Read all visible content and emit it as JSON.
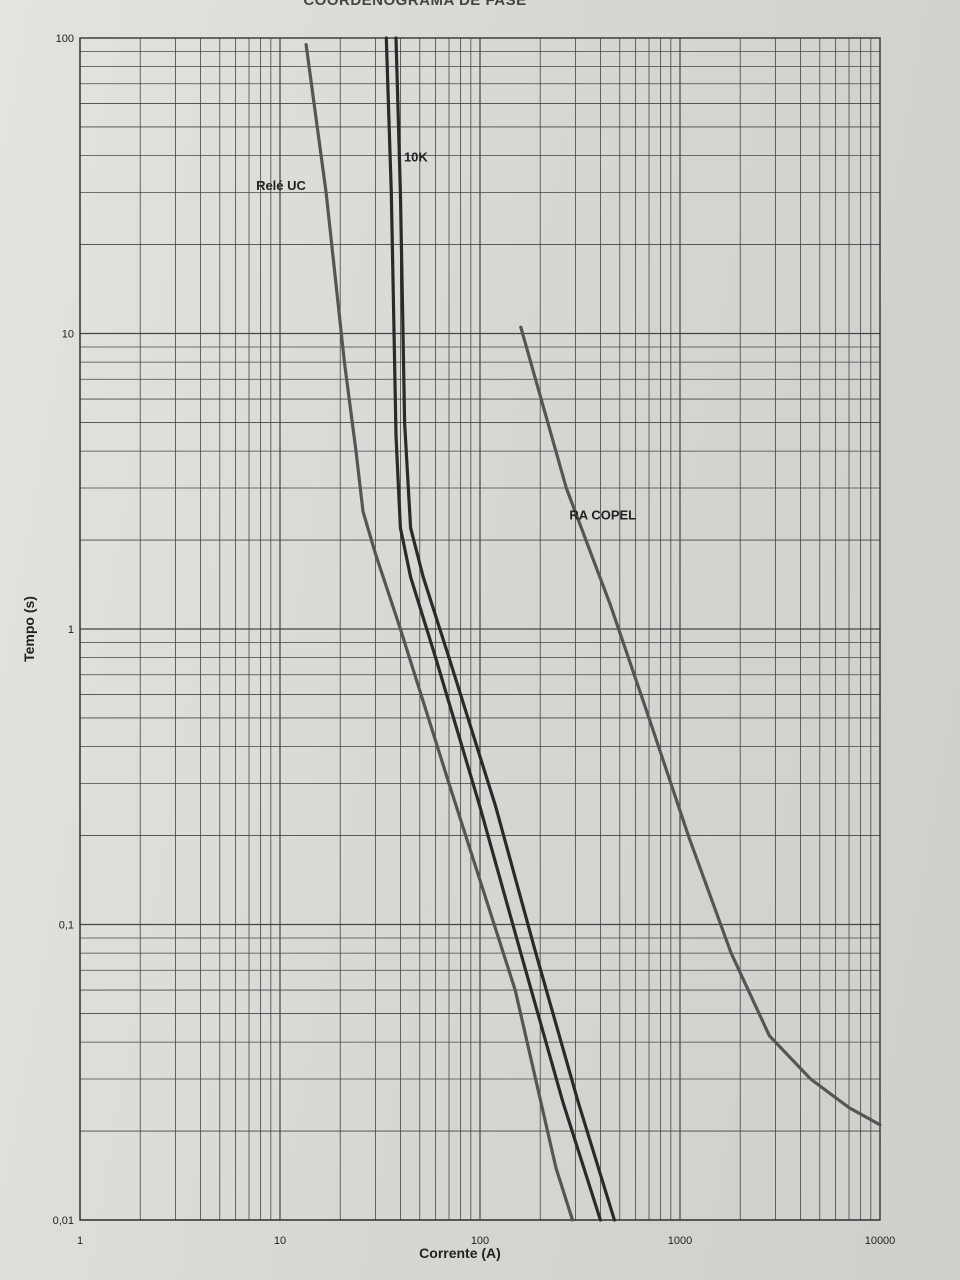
{
  "page_title": "COORDENOGRAMA DE FASE",
  "chart_data": {
    "type": "line",
    "title": "COORDENOGRAMA DE FASE",
    "xlabel": "Corrente (A)",
    "ylabel": "Tempo (s)",
    "x_scale": "log",
    "y_scale": "log",
    "xlim": [
      1,
      10000
    ],
    "ylim": [
      0.01,
      100
    ],
    "grid": true,
    "x_ticks": [
      "1",
      "10",
      "100",
      "1000",
      "10000"
    ],
    "y_ticks": [
      "0,01",
      "0,1",
      "1",
      "10",
      "100"
    ],
    "series": [
      {
        "name": "Relé UC",
        "color": "#555555",
        "points": [
          [
            13.5,
            95
          ],
          [
            17,
            30
          ],
          [
            21,
            8
          ],
          [
            24,
            4
          ],
          [
            26,
            2.5
          ],
          [
            30,
            1.8
          ],
          [
            40,
            1.0
          ],
          [
            70,
            0.3
          ],
          [
            150,
            0.06
          ],
          [
            240,
            0.015
          ],
          [
            290,
            0.01
          ]
        ]
      },
      {
        "name": "10K",
        "color": "#2a2a2a",
        "points": [
          [
            34,
            100
          ],
          [
            36,
            30
          ],
          [
            37,
            12
          ],
          [
            38,
            4.5
          ],
          [
            40,
            2.2
          ],
          [
            45,
            1.5
          ],
          [
            60,
            0.8
          ],
          [
            100,
            0.25
          ],
          [
            160,
            0.08
          ],
          [
            260,
            0.025
          ],
          [
            400,
            0.01
          ]
        ]
      },
      {
        "name": "",
        "color": "#2a2a2a",
        "points": [
          [
            38,
            100
          ],
          [
            40,
            30
          ],
          [
            41,
            12
          ],
          [
            42,
            5
          ],
          [
            45,
            2.2
          ],
          [
            52,
            1.5
          ],
          [
            70,
            0.8
          ],
          [
            120,
            0.25
          ],
          [
            190,
            0.08
          ],
          [
            310,
            0.025
          ],
          [
            470,
            0.01
          ]
        ]
      },
      {
        "name": "RA COPEL",
        "color": "#555555",
        "points": [
          [
            160,
            10.5
          ],
          [
            270,
            3.0
          ],
          [
            450,
            1.2
          ],
          [
            700,
            0.5
          ],
          [
            1100,
            0.2
          ],
          [
            1800,
            0.08
          ],
          [
            2800,
            0.042
          ],
          [
            4500,
            0.03
          ],
          [
            7000,
            0.024
          ],
          [
            10000,
            0.021
          ]
        ]
      }
    ],
    "annotations": [
      "Relé UC",
      "10K",
      "RA COPEL"
    ]
  }
}
